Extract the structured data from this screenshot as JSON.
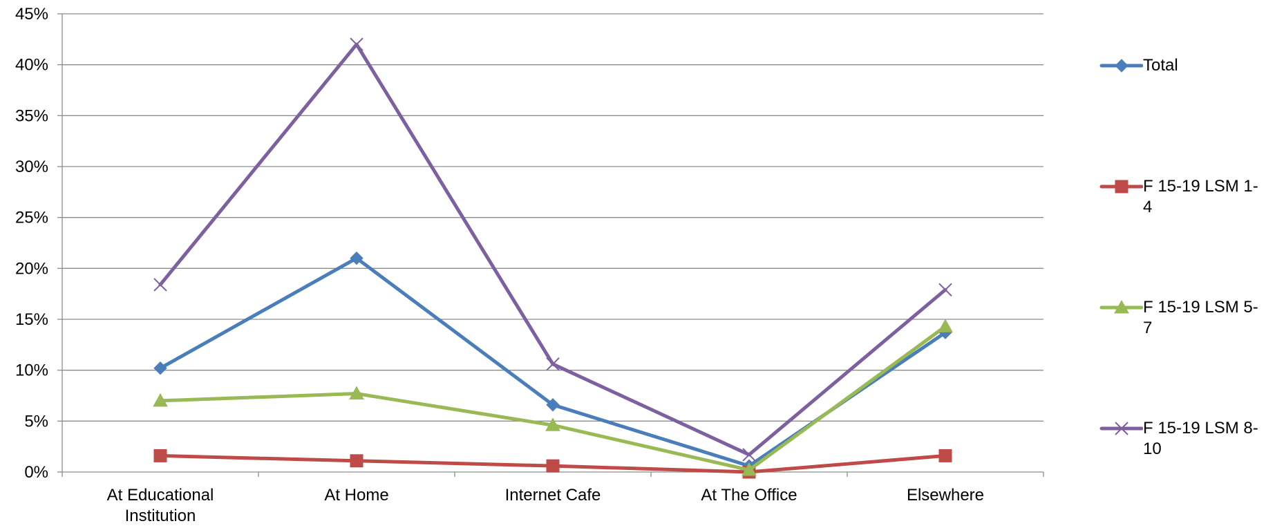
{
  "chart_data": {
    "type": "line",
    "categories": [
      "At Educational Institution",
      "At Home",
      "Internet Cafe",
      "At The Office",
      "Elsewhere"
    ],
    "category_lines": [
      [
        "At Educational",
        "Institution"
      ],
      [
        "At Home"
      ],
      [
        "Internet Cafe"
      ],
      [
        "At The Office"
      ],
      [
        "Elsewhere"
      ]
    ],
    "y_ticks": [
      "0%",
      "5%",
      "10%",
      "15%",
      "20%",
      "25%",
      "30%",
      "35%",
      "40%",
      "45%"
    ],
    "ylim": [
      0,
      45
    ],
    "y_unit": "%",
    "grid": true,
    "legend_position": "right",
    "series": [
      {
        "name": "Total",
        "marker": "diamond",
        "color": "#4a7ebb",
        "values": [
          10.2,
          21.0,
          6.6,
          0.6,
          13.7
        ]
      },
      {
        "name": "F 15-19 LSM 1-4",
        "label_lines": [
          "F 15-19 LSM 1-",
          "4"
        ],
        "marker": "square",
        "color": "#be4b48",
        "values": [
          1.6,
          1.1,
          0.6,
          0.0,
          1.6
        ]
      },
      {
        "name": "F 15-19 LSM 5-7",
        "label_lines": [
          "F 15-19 LSM 5-",
          "7"
        ],
        "marker": "triangle",
        "color": "#98b954",
        "values": [
          7.0,
          7.7,
          4.6,
          0.2,
          14.3
        ]
      },
      {
        "name": "F 15-19 LSM 8-10",
        "label_lines": [
          "F 15-19 LSM 8-",
          "10"
        ],
        "marker": "x",
        "color": "#7d60a0",
        "values": [
          18.4,
          42.0,
          10.6,
          1.7,
          17.9
        ]
      }
    ]
  }
}
